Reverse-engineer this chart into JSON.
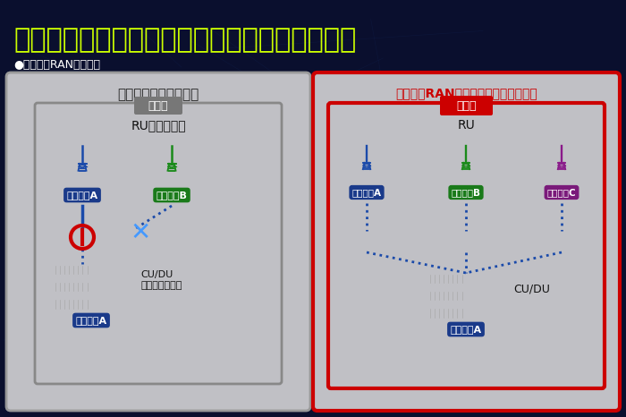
{
  "title": "異なるベンダーの機器でも基地局を構築できる",
  "subtitle": "●オープンRANの仕組み",
  "title_color": "#ccff00",
  "subtitle_color": "#ffffff",
  "bg_color": "#0a0f2e",
  "panel_bg": "#c8c8cc",
  "panel_border_left": "#888888",
  "panel_border_right": "#cc0000",
  "left_title": "従来の基地局の仕組み",
  "right_title": "オープンRANに移行した場合の仕組み",
  "right_title_color": "#ff3333",
  "kichiku_label": "基地局",
  "kichiku_bg_left": "#777777",
  "kichiku_bg_right": "#cc0000",
  "vendor_a_color": "#1a3a8a",
  "vendor_b_color": "#1a7a1a",
  "vendor_c_color": "#7a1a7a",
  "dot_color": "#1a4aaa",
  "dot_style": "dotted",
  "left_vendors": [
    "ベンダーA",
    "ベンダーB"
  ],
  "right_vendors": [
    "ベンダーA",
    "ベンダーB",
    "ベンダーC"
  ],
  "tower_colors_left": [
    "#1a4aaa",
    "#1a8a1a"
  ],
  "tower_colors_right": [
    "#1a4aaa",
    "#1a8a1a",
    "#8a1a8a"
  ],
  "RU_label_left": "RU（無線機）",
  "RU_label_right": "RU",
  "CU_label_left": "CU/DU\n（無線制御部）",
  "CU_label_right": "CU/DU",
  "vendor_a_bottom_label": "ベンダーA"
}
